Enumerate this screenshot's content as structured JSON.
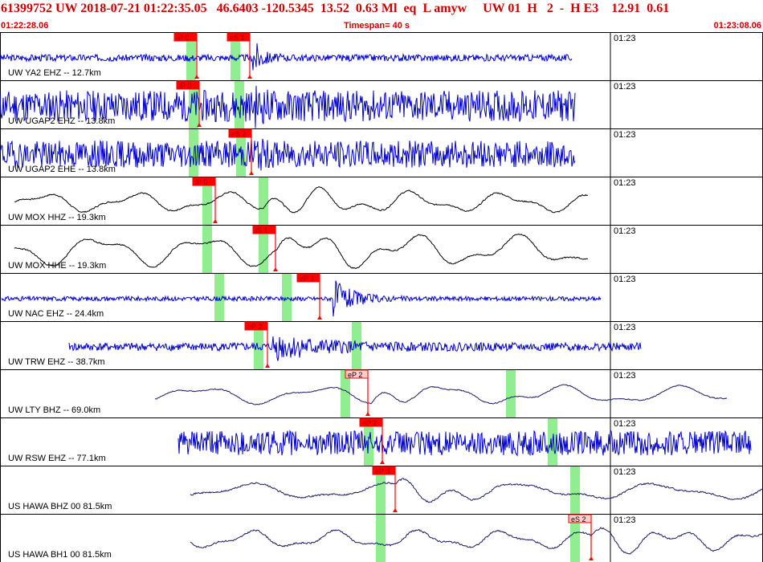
{
  "header": {
    "event_line": "61399752 UW 2018-07-21 01:22:35.05   46.6403 -120.5345  13.52  0.63 Ml  eq  L amyw     UW 01  H   2  -  H E3    12.91  0.61",
    "start_time": "01:22:28.06",
    "timespan": "Timespan=  40 s",
    "end_time": "01:23:08.06"
  },
  "colors": {
    "header_text": "#cc0000",
    "pick_marker": "#ff0000",
    "theoretical_window": "#90ee90",
    "trace_blue": "#0000cc",
    "trace_black": "#000000",
    "trace_navy": "#1a1a66"
  },
  "panels": [
    {
      "label": "UW YA2 EHZ -- 12.7km",
      "minute": "01:23",
      "color": "blue",
      "style": "noise",
      "x_start": 0,
      "x_end": 712,
      "event_x": 315,
      "noise": 0.15,
      "amp": 1.0,
      "decay": 10,
      "seed": 3,
      "green": [
        238,
        293
      ],
      "picks": [
        {
          "label": "iP 0",
          "x": 245,
          "type": "red"
        },
        {
          "label": "eS 1",
          "x": 311,
          "type": "red"
        }
      ]
    },
    {
      "label": "UW UGAP2 EHZ -- 13.8km",
      "minute": "01:23",
      "color": "blue",
      "style": "noise",
      "x_start": 0,
      "x_end": 716,
      "event_x": 318,
      "noise": 0.7,
      "amp": 1.0,
      "decay": 12,
      "seed": 11,
      "green": [
        241,
        298
      ],
      "picks": [
        {
          "label": "iP 0",
          "x": 248,
          "type": "red"
        }
      ]
    },
    {
      "label": "UW UGAP2 EHE -- 13.8km",
      "minute": "01:23",
      "color": "blue",
      "style": "noise",
      "x_start": 0,
      "x_end": 716,
      "event_x": 312,
      "noise": 0.6,
      "amp": 1.0,
      "decay": 12,
      "seed": 19,
      "green": [
        241,
        300
      ],
      "picks": [
        {
          "label": "eS 2",
          "x": 313,
          "type": "red"
        }
      ]
    },
    {
      "label": "UW MOX HHZ -- 19.3km",
      "minute": "01:23",
      "color": "black",
      "style": "wave",
      "x_start": 18,
      "x_end": 732,
      "event_x": 327,
      "noise": 0.04,
      "amp": 0.55,
      "period": 115,
      "seed": 7,
      "green": [
        258,
        328
      ],
      "picks": [
        {
          "label": "iP 0",
          "x": 268,
          "type": "red"
        }
      ]
    },
    {
      "label": "UW MOX HHE -- 19.3km",
      "minute": "01:23",
      "color": "black",
      "style": "wave",
      "x_start": 18,
      "x_end": 732,
      "event_x": 345,
      "noise": 0.04,
      "amp": 0.85,
      "period": 130,
      "seed": 23,
      "green": [
        258,
        328
      ],
      "picks": [
        {
          "label": "iS 1",
          "x": 343,
          "type": "red"
        }
      ]
    },
    {
      "label": "UW NAC EHZ -- 24.4km",
      "minute": "01:23",
      "color": "blue",
      "style": "noise",
      "x_start": 2,
      "x_end": 748,
      "event_x": 415,
      "noise": 0.1,
      "amp": 0.95,
      "decay": 22,
      "seed": 31,
      "green": [
        273,
        357
      ],
      "picks": [
        {
          "label": "eP 1",
          "x": 398,
          "type": "red"
        }
      ]
    },
    {
      "label": "UW TRW EHZ -- 38.7km",
      "minute": "01:23",
      "color": "blue",
      "style": "noise",
      "x_start": 86,
      "x_end": 798,
      "event_x": 340,
      "noise": 0.18,
      "amp": 0.7,
      "decay": 60,
      "seed": 41,
      "green": [
        322,
        444
      ],
      "picks": [
        {
          "label": "eP 2",
          "x": 333,
          "type": "red"
        }
      ]
    },
    {
      "label": "UW LTY BHZ -- 69.0km",
      "minute": "01:23",
      "color": "navy",
      "style": "wave",
      "x_start": 193,
      "x_end": 905,
      "event_x": 462,
      "noise": 0.03,
      "amp": 0.5,
      "period": 150,
      "seed": 53,
      "green": [
        430,
        636
      ],
      "picks": [
        {
          "label": "eP 2",
          "x": 458,
          "type": "pink"
        }
      ]
    },
    {
      "label": "UW RSW EHZ -- 77.1km",
      "minute": "01:23",
      "color": "blue",
      "style": "noise",
      "x_start": 222,
      "x_end": 935,
      "event_x": 480,
      "noise": 0.55,
      "amp": 0.5,
      "decay": 30,
      "seed": 61,
      "green": [
        459,
        688
      ],
      "picks": [
        {
          "label": "eP 2",
          "x": 476,
          "type": "red"
        }
      ]
    },
    {
      "label": "US HAWA BHZ 00 81.5km",
      "minute": "01:23",
      "color": "navy",
      "style": "wave",
      "x_start": 237,
      "x_end": 950,
      "event_x": 492,
      "noise": 0.05,
      "amp": 0.45,
      "period": 170,
      "seed": 71,
      "green": [
        474,
        716
      ],
      "picks": [
        {
          "label": "eP 3",
          "x": 492,
          "type": "red"
        }
      ]
    },
    {
      "label": "US HAWA BH1 00 81.5km",
      "minute": "01:23",
      "color": "navy",
      "style": "wave",
      "x_start": 237,
      "x_end": 950,
      "event_x": 736,
      "noise": 0.05,
      "amp": 0.5,
      "period": 105,
      "seed": 83,
      "green": [
        474,
        716
      ],
      "picks": [
        {
          "label": "eS 2",
          "x": 736,
          "type": "pink"
        }
      ]
    }
  ]
}
